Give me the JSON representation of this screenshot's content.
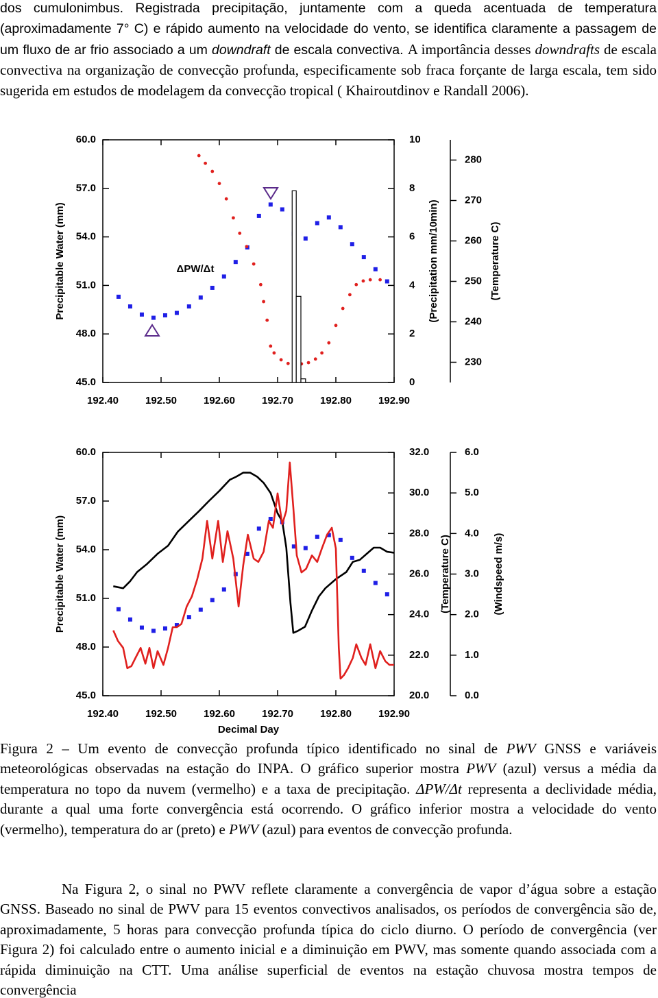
{
  "document": {
    "paragraph_1": [
      "dos cumulonimbus. Registrada precipitação, juntamente com a queda acentuada de temperatura (aproximadamente 7° C) e rápido aumento na velocidade do vento, se identifica claramente a passagem de um fluxo de ar frio associado a um ",
      "downdraft",
      " de escala convectiva. ",
      "A importância desses ",
      "downdrafts",
      " de escala convectiva na organização de convecção profunda, especificamente sob fraca forçante de larga escala, tem sido sugerida em estudos de modelagem da convecção tropical ( Khairoutdinov e Randall 2006)."
    ],
    "caption": [
      "Figura 2 – Um evento de convecção profunda típico identificado no sinal de ",
      "PWV",
      " GNSS e variáveis meteorológicas observadas na estação do INPA. O gráfico superior mostra ",
      "PWV",
      " (azul) versus a média da temperatura no topo da nuvem (vermelho) e a taxa de precipitação. ",
      "ΔPW/Δt",
      " representa a declividade média, durante a qual uma forte convergência está ocorrendo. O gráfico inferior mostra a velocidade do vento (vermelho), temperatura do ar (preto) e ",
      "PWV",
      " (azul) para eventos de convecção profunda."
    ],
    "paragraph_2": [
      "Na Figura 2, o sinal no PWV reflete claramente a convergência de vapor d’água sobre a estação GNSS. Baseado no sinal de PWV para 15 eventos convectivos analisados, os períodos de convergência são de, aproximadamente, 5 horas para convecção profunda típica do ciclo diurno. O período de convergência (ver Figura 2) foi calculado entre o aumento inicial e a diminuição em PWV, mas somente quando associada com a rápida diminuição na CTT. Uma análise superficial de eventos na estação chuvosa mostra tempos de convergência"
    ]
  },
  "chart_data": [
    {
      "type": "combo",
      "ylabel": "Precipitable Water (mm)",
      "y2label": "(Precipitation mm/10min)",
      "y3label": "(Temperature C)",
      "annotation": "ΔPW/Δt",
      "xlim": [
        192.4,
        192.9
      ],
      "xticks": [
        {
          "value": 192.4,
          "label": "192.40"
        },
        {
          "value": 192.5,
          "label": "192.50"
        },
        {
          "value": 192.6,
          "label": "192.60"
        },
        {
          "value": 192.7,
          "label": "192.70"
        },
        {
          "value": 192.8,
          "label": "192.80"
        },
        {
          "value": 192.9,
          "label": "192.90"
        }
      ],
      "ylim": [
        45,
        60
      ],
      "yticks": [
        {
          "value": 45,
          "label": "45.0"
        },
        {
          "value": 48,
          "label": "48.0"
        },
        {
          "value": 51,
          "label": "51.0"
        },
        {
          "value": 54,
          "label": "54.0"
        },
        {
          "value": 57,
          "label": "57.0"
        },
        {
          "value": 60,
          "label": "60.0"
        }
      ],
      "y2lim": [
        0,
        10
      ],
      "y2ticks": [
        0,
        2,
        4,
        6,
        8,
        10
      ],
      "y3lim": [
        225,
        285
      ],
      "y3ticks": [
        230,
        240,
        250,
        260,
        270,
        280
      ],
      "series": [
        {
          "type": "scatter",
          "marker": "square",
          "color": "#1f1fe6",
          "axis": "y",
          "x": [
            192.427,
            192.447,
            192.467,
            192.487,
            192.507,
            192.527,
            192.548,
            192.568,
            192.588,
            192.608,
            192.628,
            192.648,
            192.668,
            192.688,
            192.708,
            192.728,
            192.748,
            192.768,
            192.788,
            192.808,
            192.828,
            192.848,
            192.868,
            192.888
          ],
          "values": [
            50.3,
            49.7,
            49.2,
            49.0,
            49.15,
            49.3,
            49.7,
            50.25,
            50.85,
            51.55,
            52.45,
            53.35,
            55.3,
            56.0,
            55.7,
            54.2,
            53.9,
            54.85,
            55.2,
            54.6,
            53.55,
            52.75,
            52.0,
            51.25
          ]
        },
        {
          "type": "scatter",
          "marker": "circle",
          "color": "#e0201e",
          "axis": "y3",
          "x": [
            192.565,
            192.576,
            192.588,
            192.6,
            192.612,
            192.624,
            192.635,
            192.647,
            192.659,
            192.671,
            192.676,
            192.682,
            192.688,
            192.694,
            192.706,
            192.718,
            192.729,
            192.741,
            192.753,
            192.765,
            192.776,
            192.788,
            192.8,
            192.812,
            192.824,
            192.835,
            192.847,
            192.859,
            192.876
          ],
          "values": [
            281.1,
            279.2,
            277.2,
            274.2,
            270.4,
            265.7,
            261.9,
            258.6,
            254.3,
            249.2,
            245.0,
            240.4,
            234.0,
            232.3,
            230.6,
            229.7,
            229.6,
            229.6,
            229.9,
            230.8,
            232.3,
            234.8,
            239.1,
            243.3,
            246.7,
            249.2,
            250.1,
            250.4,
            250.4
          ]
        },
        {
          "type": "histogram",
          "color": "#000000",
          "axis": "y2",
          "bins": [
            192.725,
            192.732,
            192.74,
            192.748
          ],
          "values": [
            7.9,
            3.55,
            0.15
          ]
        }
      ]
    },
    {
      "type": "combo",
      "xlabel": "Decimal Day",
      "ylabel": "Precipitable Water (mm)",
      "y2label": "(Temperature C)",
      "y3label": "(Windspeed m/s)",
      "xlim": [
        192.4,
        192.9
      ],
      "xticks": [
        {
          "value": 192.4,
          "label": "192.40"
        },
        {
          "value": 192.5,
          "label": "192.50"
        },
        {
          "value": 192.6,
          "label": "192.60"
        },
        {
          "value": 192.7,
          "label": "192.70"
        },
        {
          "value": 192.8,
          "label": "192.80"
        },
        {
          "value": 192.9,
          "label": "192.90"
        }
      ],
      "ylim": [
        45,
        60
      ],
      "yticks": [
        {
          "value": 45,
          "label": "45.0"
        },
        {
          "value": 48,
          "label": "48.0"
        },
        {
          "value": 51,
          "label": "51.0"
        },
        {
          "value": 54,
          "label": "54.0"
        },
        {
          "value": 57,
          "label": "57.0"
        },
        {
          "value": 60,
          "label": "60.0"
        }
      ],
      "y2lim": [
        20,
        32
      ],
      "y2ticks": [
        {
          "value": 20,
          "label": "20.0"
        },
        {
          "value": 22,
          "label": "22.0"
        },
        {
          "value": 24,
          "label": "24.0"
        },
        {
          "value": 26,
          "label": "26.0"
        },
        {
          "value": 28,
          "label": "28.0"
        },
        {
          "value": 30,
          "label": "30.0"
        },
        {
          "value": 32,
          "label": "32.0"
        }
      ],
      "y3lim": [
        0,
        6
      ],
      "y3ticks": [
        {
          "value": 0,
          "label": "0.0"
        },
        {
          "value": 1,
          "label": "1.0"
        },
        {
          "value": 2,
          "label": "2.0"
        },
        {
          "value": 3,
          "label": "3.0"
        },
        {
          "value": 4,
          "label": "4.0"
        },
        {
          "value": 5,
          "label": "5.0"
        },
        {
          "value": 6,
          "label": "6.0"
        }
      ],
      "series": [
        {
          "type": "scatter",
          "marker": "square",
          "color": "#1f1fe6",
          "axis": "y",
          "x": [
            192.427,
            192.447,
            192.467,
            192.487,
            192.507,
            192.527,
            192.548,
            192.568,
            192.588,
            192.608,
            192.628,
            192.648,
            192.668,
            192.688,
            192.708,
            192.728,
            192.748,
            192.768,
            192.788,
            192.808,
            192.828,
            192.848,
            192.868,
            192.888
          ],
          "values": [
            50.33,
            49.7,
            49.2,
            49.0,
            49.15,
            49.35,
            49.85,
            50.3,
            50.9,
            51.55,
            52.5,
            53.75,
            55.3,
            55.9,
            55.7,
            54.2,
            54.1,
            54.8,
            54.9,
            54.6,
            53.5,
            52.7,
            51.95,
            51.25
          ]
        },
        {
          "type": "line",
          "color": "#000000",
          "axis": "y2",
          "x": [
            192.418,
            192.435,
            192.447,
            192.459,
            192.476,
            192.494,
            192.512,
            192.529,
            192.547,
            192.565,
            192.582,
            192.6,
            192.618,
            192.629,
            192.641,
            192.653,
            192.665,
            192.676,
            192.688,
            192.7,
            192.708,
            192.715,
            192.722,
            192.727,
            192.735,
            192.747,
            192.759,
            192.771,
            192.782,
            192.8,
            192.818,
            192.829,
            192.841,
            192.853,
            192.865,
            192.876,
            192.888,
            192.9
          ],
          "values": [
            25.4,
            25.3,
            25.65,
            26.1,
            26.5,
            27.0,
            27.4,
            28.1,
            28.6,
            29.1,
            29.6,
            30.1,
            30.65,
            30.8,
            31.0,
            31.0,
            30.8,
            30.5,
            30.0,
            29.0,
            28.6,
            27.3,
            24.6,
            23.1,
            23.2,
            23.4,
            24.2,
            24.9,
            25.3,
            25.75,
            26.1,
            26.6,
            26.7,
            27.0,
            27.3,
            27.3,
            27.1,
            27.05
          ]
        },
        {
          "type": "line",
          "color": "#e0201e",
          "axis": "y3",
          "x": [
            192.418,
            192.426,
            192.435,
            192.442,
            192.449,
            192.456,
            192.465,
            192.473,
            192.48,
            192.487,
            192.494,
            192.504,
            192.512,
            192.52,
            192.527,
            192.535,
            192.544,
            192.553,
            192.562,
            192.571,
            192.579,
            192.588,
            192.598,
            192.606,
            192.614,
            192.624,
            192.633,
            192.641,
            192.649,
            192.659,
            192.667,
            192.676,
            192.685,
            192.692,
            192.7,
            192.708,
            192.715,
            192.721,
            192.727,
            192.733,
            192.741,
            192.749,
            192.759,
            192.768,
            192.776,
            192.785,
            192.793,
            192.8,
            192.805,
            192.808,
            192.814,
            192.821,
            192.829,
            192.835,
            192.844,
            192.851,
            192.859,
            192.868,
            192.876,
            192.885,
            192.892,
            192.9
          ],
          "values": [
            1.61,
            1.35,
            1.18,
            0.68,
            0.73,
            0.93,
            1.18,
            0.79,
            1.18,
            0.68,
            1.1,
            0.76,
            1.18,
            1.69,
            1.69,
            1.77,
            2.2,
            2.45,
            2.87,
            3.38,
            4.31,
            3.38,
            4.31,
            3.3,
            4.06,
            3.38,
            2.2,
            3.21,
            3.97,
            3.38,
            3.3,
            3.55,
            4.31,
            4.14,
            4.99,
            4.23,
            4.56,
            5.75,
            4.65,
            3.46,
            3.04,
            3.13,
            3.46,
            3.3,
            3.63,
            3.97,
            4.14,
            3.63,
            1.18,
            0.42,
            0.51,
            0.68,
            0.93,
            1.27,
            0.93,
            0.76,
            1.27,
            0.68,
            1.1,
            0.85,
            0.76,
            0.76
          ]
        }
      ]
    }
  ]
}
